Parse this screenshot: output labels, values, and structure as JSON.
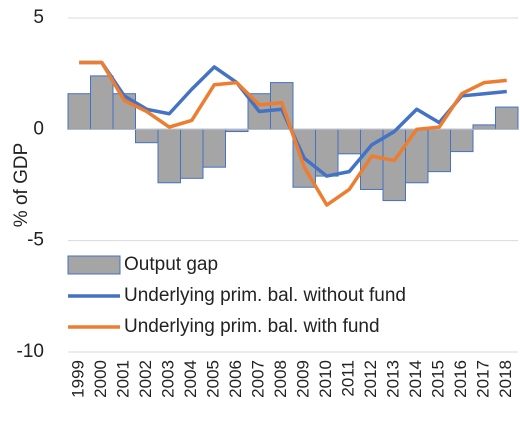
{
  "chart_data": {
    "type": "bar",
    "y_label": "% of GDP",
    "categories": [
      "1999",
      "2000",
      "2001",
      "2002",
      "2003",
      "2004",
      "2005",
      "2006",
      "2007",
      "2008",
      "2009",
      "2010",
      "2011",
      "2012",
      "2013",
      "2014",
      "2015",
      "2016",
      "2017",
      "2018"
    ],
    "series": [
      {
        "name": "Output gap",
        "type": "bar",
        "color": "#a5a5a5",
        "edge": "#4472c4",
        "values": [
          1.6,
          2.4,
          1.6,
          -0.6,
          -2.4,
          -2.2,
          -1.7,
          -0.1,
          1.6,
          2.1,
          -2.6,
          -2.1,
          -1.1,
          -2.7,
          -3.2,
          -2.4,
          -1.9,
          -1.0,
          0.2,
          1.0
        ]
      },
      {
        "name": "Underlying prim. bal. without fund",
        "type": "line",
        "color": "#4472c4",
        "values": [
          3.0,
          3.0,
          1.5,
          0.9,
          0.7,
          1.8,
          2.8,
          2.1,
          0.8,
          0.9,
          -1.3,
          -2.1,
          -1.9,
          -0.7,
          -0.1,
          0.9,
          0.3,
          1.5,
          1.6,
          1.7
        ]
      },
      {
        "name": "Underlying prim. bal. with fund",
        "type": "line",
        "color": "#ed7d31",
        "values": [
          3.0,
          3.0,
          1.3,
          0.8,
          0.1,
          0.4,
          2.0,
          2.1,
          1.1,
          1.2,
          -1.7,
          -3.4,
          -2.7,
          -1.2,
          -1.4,
          0.0,
          0.1,
          1.6,
          2.1,
          2.2
        ]
      }
    ],
    "ylim": [
      -10,
      5
    ],
    "yticks": [
      -10,
      -5,
      0,
      5
    ],
    "grid": true,
    "legend": "lower left"
  }
}
